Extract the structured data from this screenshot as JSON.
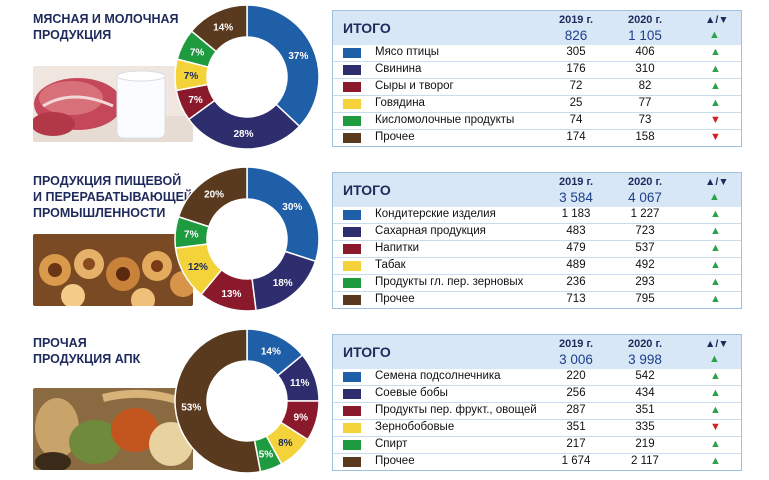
{
  "chart_data": [
    {
      "type": "pie",
      "title": "Мясная и молочная продукция",
      "categories": [
        "Мясо птицы",
        "Свинина",
        "Сыры и творог",
        "Говядина",
        "Кисломолочные продукты",
        "Прочее"
      ],
      "values": [
        37,
        28,
        7,
        7,
        7,
        14
      ],
      "value_labels": [
        "37%",
        "28%",
        "7%",
        "7%",
        "7%",
        "14%"
      ],
      "colors": [
        "#1f5fa8",
        "#2e2d6e",
        "#8a1a2b",
        "#f3d23a",
        "#1e9a3f",
        "#5a3a1e"
      ],
      "table": {
        "header": {
          "label": "ИТОГО",
          "y2019": "2019 г.",
          "y2020": "2020 г.",
          "trend": "▲/▼",
          "total2019": "826",
          "total2020": "1 105",
          "total_trend": "▲"
        },
        "rows": [
          {
            "label": "Мясо птицы",
            "v2019": "305",
            "v2020": "406",
            "trend": "▲"
          },
          {
            "label": "Свинина",
            "v2019": "176",
            "v2020": "310",
            "trend": "▲"
          },
          {
            "label": "Сыры и творог",
            "v2019": "72",
            "v2020": "82",
            "trend": "▲"
          },
          {
            "label": "Говядина",
            "v2019": "25",
            "v2020": "77",
            "trend": "▲"
          },
          {
            "label": "Кисломолочные продукты",
            "v2019": "74",
            "v2020": "73",
            "trend": "▼"
          },
          {
            "label": "Прочее",
            "v2019": "174",
            "v2020": "158",
            "trend": "▼"
          }
        ]
      }
    },
    {
      "type": "pie",
      "title": "Продукция пищевой и перерабатывающей промышленности",
      "categories": [
        "Кондитерские изделия",
        "Сахарная продукция",
        "Напитки",
        "Табак",
        "Продукты гл. пер. зерновых",
        "Прочее"
      ],
      "values": [
        30,
        18,
        13,
        12,
        7,
        20
      ],
      "value_labels": [
        "30%",
        "18%",
        "13%",
        "12%",
        "7%",
        "20%"
      ],
      "colors": [
        "#1f5fa8",
        "#2e2d6e",
        "#8a1a2b",
        "#f3d23a",
        "#1e9a3f",
        "#5a3a1e"
      ],
      "table": {
        "header": {
          "label": "ИТОГО",
          "y2019": "2019 г.",
          "y2020": "2020 г.",
          "trend": "▲/▼",
          "total2019": "3 584",
          "total2020": "4 067",
          "total_trend": "▲"
        },
        "rows": [
          {
            "label": "Кондитерские изделия",
            "v2019": "1 183",
            "v2020": "1 227",
            "trend": "▲"
          },
          {
            "label": "Сахарная продукция",
            "v2019": "483",
            "v2020": "723",
            "trend": "▲"
          },
          {
            "label": "Напитки",
            "v2019": "479",
            "v2020": "537",
            "trend": "▲"
          },
          {
            "label": "Табак",
            "v2019": "489",
            "v2020": "492",
            "trend": "▲"
          },
          {
            "label": "Продукты гл. пер. зерновых",
            "v2019": "236",
            "v2020": "293",
            "trend": "▲"
          },
          {
            "label": "Прочее",
            "v2019": "713",
            "v2020": "795",
            "trend": "▲"
          }
        ]
      }
    },
    {
      "type": "pie",
      "title": "Прочая продукция АПК",
      "categories": [
        "Семена подсолнечника",
        "Соевые бобы",
        "Продукты пер. фрукт., овощей",
        "Зернобобовые",
        "Спирт",
        "Прочее"
      ],
      "values": [
        14,
        11,
        9,
        8,
        5,
        53
      ],
      "value_labels": [
        "14%",
        "11%",
        "9%",
        "8%",
        "5%",
        "53%"
      ],
      "colors": [
        "#1f5fa8",
        "#2e2d6e",
        "#8a1a2b",
        "#f3d23a",
        "#1e9a3f",
        "#5a3a1e"
      ],
      "table": {
        "header": {
          "label": "ИТОГО",
          "y2019": "2019 г.",
          "y2020": "2020 г.",
          "trend": "▲/▼",
          "total2019": "3 006",
          "total2020": "3 998",
          "total_trend": "▲"
        },
        "rows": [
          {
            "label": "Семена подсолнечника",
            "v2019": "220",
            "v2020": "542",
            "trend": "▲"
          },
          {
            "label": "Соевые бобы",
            "v2019": "256",
            "v2020": "434",
            "trend": "▲"
          },
          {
            "label": "Продукты пер. фрукт., овощей",
            "v2019": "287",
            "v2020": "351",
            "trend": "▲"
          },
          {
            "label": "Зернобобовые",
            "v2019": "351",
            "v2020": "335",
            "trend": "▼"
          },
          {
            "label": "Спирт",
            "v2019": "217",
            "v2020": "219",
            "trend": "▲"
          },
          {
            "label": "Прочее",
            "v2019": "1 674",
            "v2020": "2 117",
            "trend": "▲"
          }
        ]
      }
    }
  ],
  "photos": [
    "meat-and-milk-photo",
    "pastry-photo",
    "grains-and-beans-photo"
  ],
  "colors": {
    "accent": "#1d2a5b",
    "header_bg": "#d7e7f6",
    "up": "#2aa34a",
    "down": "#d42020"
  }
}
